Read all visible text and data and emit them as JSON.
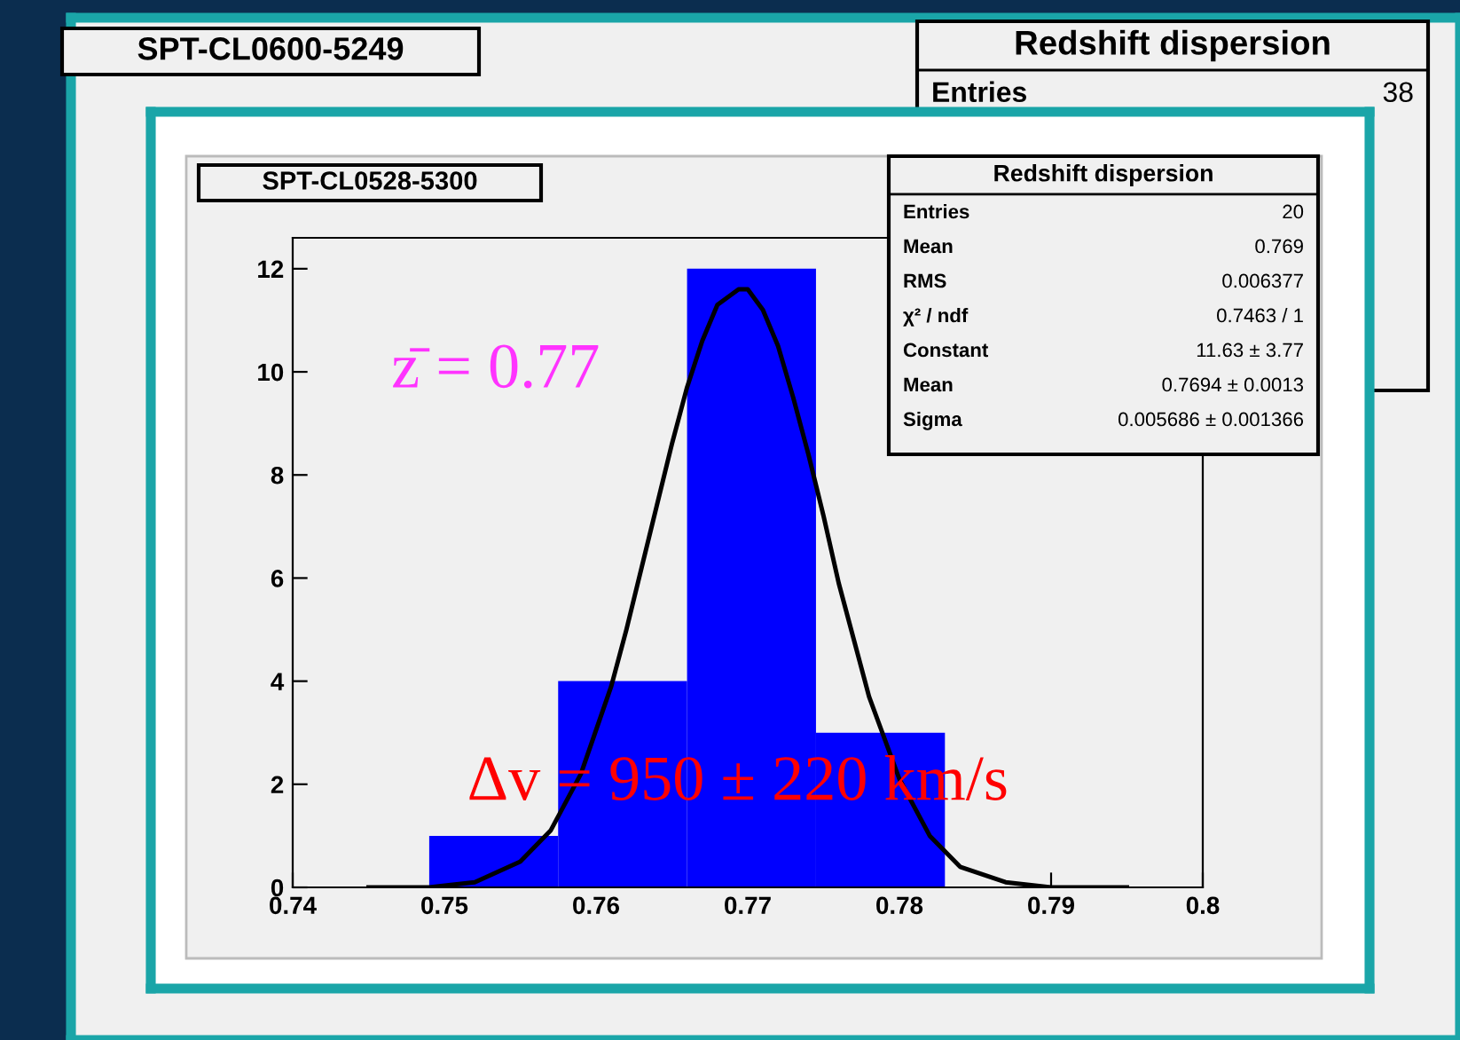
{
  "chart_data": [
    {
      "type": "other",
      "title": "SPT-CL0600-5249",
      "annotations": [
        "Redshift dispersion",
        "Entries",
        "38"
      ]
    },
    {
      "type": "histogram",
      "title": "SPT-CL0528-5300",
      "bins": [
        0.749,
        0.7575,
        0.766,
        0.7745,
        0.783
      ],
      "values": [
        1,
        4,
        12,
        3
      ],
      "color": "#0000ff",
      "series": [
        {
          "type": "line",
          "color": "#000000",
          "x": [
            0.745,
            0.749,
            0.752,
            0.755,
            0.757,
            0.759,
            0.761,
            0.762,
            0.763,
            0.764,
            0.765,
            0.766,
            0.767,
            0.768,
            0.7694,
            0.77,
            0.771,
            0.772,
            0.773,
            0.774,
            0.775,
            0.776,
            0.778,
            0.78,
            0.782,
            0.784,
            0.787,
            0.79,
            0.795
          ],
          "values": [
            0.0,
            0.0,
            0.1,
            0.5,
            1.1,
            2.2,
            3.9,
            5.0,
            6.2,
            7.4,
            8.6,
            9.7,
            10.6,
            11.3,
            11.6,
            11.6,
            11.2,
            10.5,
            9.5,
            8.4,
            7.2,
            5.9,
            3.7,
            2.1,
            1.0,
            0.4,
            0.1,
            0.0,
            0.0
          ]
        }
      ],
      "xlim": [
        0.74,
        0.8
      ],
      "xticks": [
        0.74,
        0.75,
        0.76,
        0.77,
        0.78,
        0.79,
        {
          "value": 0.8,
          "label": "0.8"
        }
      ],
      "ylim": [
        0,
        12.6
      ],
      "yticks": [
        0,
        2,
        4,
        6,
        8,
        10,
        12
      ],
      "grid": false,
      "legend": false,
      "annotations": [
        "z̄ = 0.77",
        "Δv = 950 ± 220 km/s",
        "Redshift dispersion",
        "Entries",
        "20",
        "Mean",
        "0.769",
        "RMS",
        "0.006377",
        "χ² / ndf",
        "0.7463 / 1",
        "Constant",
        "11.63 ± 3.77",
        "Mean",
        "0.7694 ± 0.0013",
        "Sigma",
        "0.005686 ± 0.001366"
      ]
    }
  ]
}
